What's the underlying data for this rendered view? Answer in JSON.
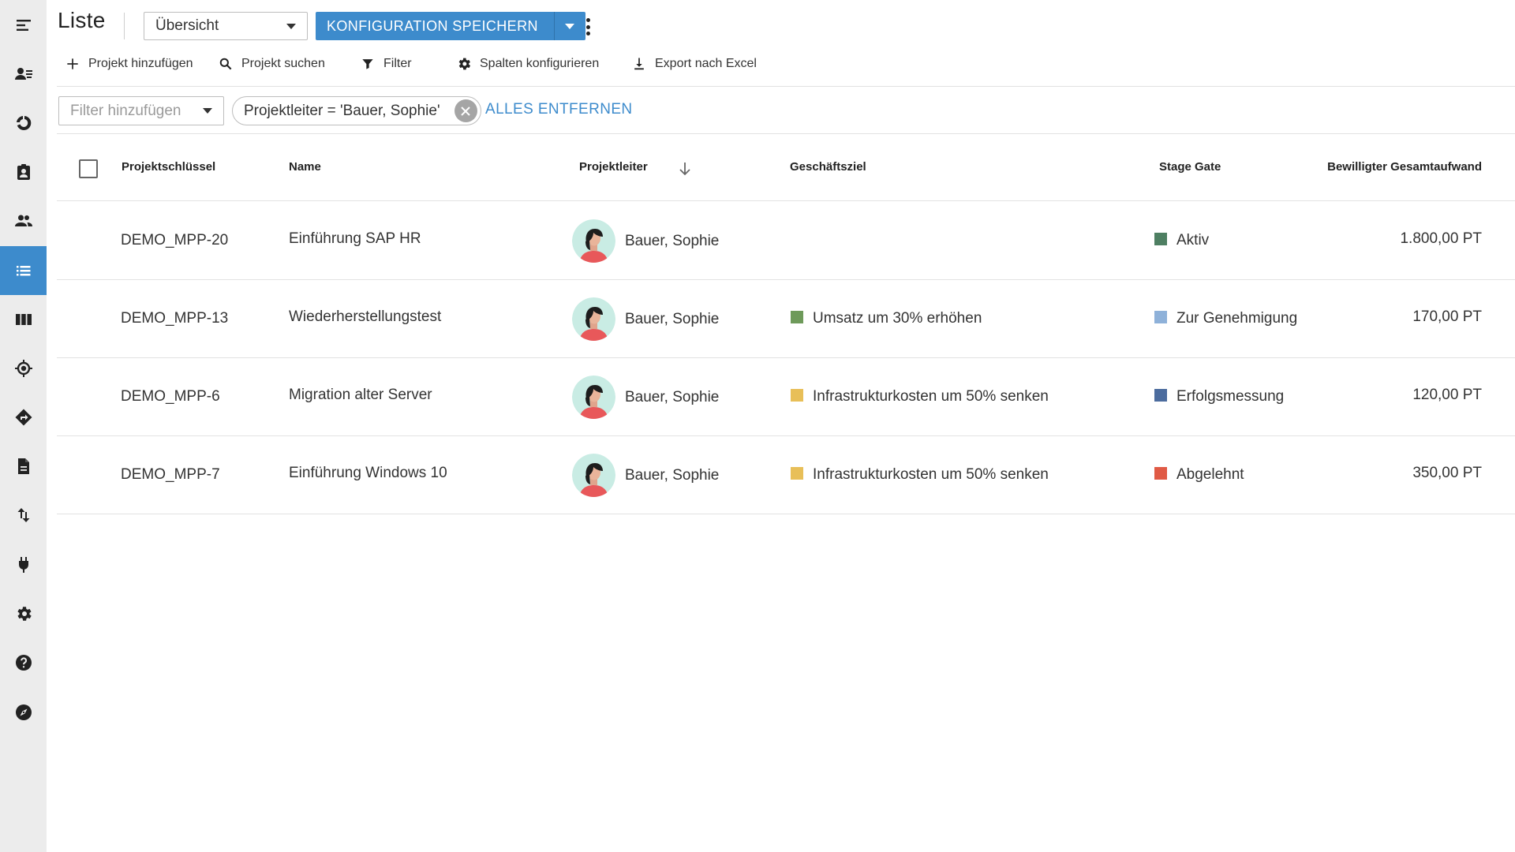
{
  "header": {
    "title": "Liste",
    "view_select": "Übersicht",
    "save_label": "KONFIGURATION SPEICHERN"
  },
  "toolbar": {
    "add_project": "Projekt hinzufügen",
    "search_project": "Projekt suchen",
    "filter": "Filter",
    "configure_columns": "Spalten konfigurieren",
    "export_excel": "Export nach Excel"
  },
  "filters": {
    "placeholder": "Filter hinzufügen",
    "active_chip": "Projektleiter = 'Bauer, Sophie'",
    "remove_all": "ALLES ENTFERNEN"
  },
  "table": {
    "columns": [
      "Projektschlüssel",
      "Name",
      "Projektleiter",
      "Geschäftsziel",
      "Stage Gate",
      "Bewilligter Gesamtaufwand"
    ],
    "rows": [
      {
        "key": "DEMO_MPP-20",
        "name": "Einführung SAP HR",
        "lead": "Bauer, Sophie",
        "goal": "",
        "goal_color": "",
        "stage": "Aktiv",
        "stage_color": "#4e7f62",
        "effort": "1.800,00 PT"
      },
      {
        "key": "DEMO_MPP-13",
        "name": "Wiederherstellungstest",
        "lead": "Bauer, Sophie",
        "goal": "Umsatz um 30% erhöhen",
        "goal_color": "#6e9a5a",
        "stage": "Zur Genehmigung",
        "stage_color": "#8eb1d9",
        "effort": "170,00 PT"
      },
      {
        "key": "DEMO_MPP-6",
        "name": "Migration alter Server",
        "lead": "Bauer, Sophie",
        "goal": "Infrastrukturkosten um 50% senken",
        "goal_color": "#e8bf58",
        "stage": "Erfolgsmessung",
        "stage_color": "#4c6c9e",
        "effort": "120,00 PT"
      },
      {
        "key": "DEMO_MPP-7",
        "name": "Einführung Windows 10",
        "lead": "Bauer, Sophie",
        "goal": "Infrastrukturkosten um 50% senken",
        "goal_color": "#e8bf58",
        "stage": "Abgelehnt",
        "stage_color": "#e05a45",
        "effort": "350,00 PT"
      }
    ]
  },
  "colors": {
    "accent": "#3d8bcc",
    "sidebar_bg": "#ececec"
  },
  "sidebar": {
    "icons": [
      "menu-icon",
      "contacts-icon",
      "chart-icon",
      "badge-icon",
      "people-icon",
      "list-icon",
      "columns-icon",
      "target-icon",
      "directions-icon",
      "document-icon",
      "sort-arrows-icon",
      "plug-icon",
      "gear-icon",
      "help-icon",
      "compass-icon"
    ]
  }
}
